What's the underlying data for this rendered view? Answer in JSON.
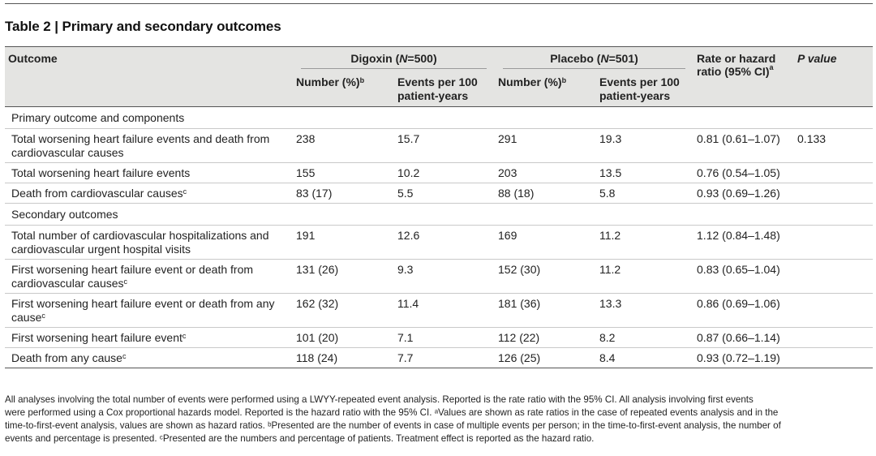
{
  "title": "Table 2 | Primary and secondary outcomes",
  "header": {
    "outcome": "Outcome",
    "digoxin": "Digoxin (N=500)",
    "placebo": "Placebo (N=501)",
    "ratio": "Rate or hazard ratio (95% CI)",
    "ratio_sup": "a",
    "pvalue": "P value",
    "number_pct": "Number (%)",
    "number_pct_sup": "b",
    "events_per_100": "Events per 100 patient-years"
  },
  "rows": [
    {
      "type": "section",
      "label": "Primary outcome and components"
    },
    {
      "type": "data",
      "label": "Total worsening heart failure events and death from cardiovascular causes",
      "sup": "",
      "d_num": "238",
      "d_evt": "15.7",
      "p_num": "291",
      "p_evt": "19.3",
      "ratio": "0.81 (0.61–1.07)",
      "pval": "0.133"
    },
    {
      "type": "data",
      "label": "Total worsening heart failure events",
      "sup": "",
      "d_num": "155",
      "d_evt": "10.2",
      "p_num": "203",
      "p_evt": "13.5",
      "ratio": "0.76 (0.54–1.05)",
      "pval": ""
    },
    {
      "type": "data",
      "label": "Death from cardiovascular causes",
      "sup": "c",
      "d_num": "83 (17)",
      "d_evt": "5.5",
      "p_num": "88 (18)",
      "p_evt": "5.8",
      "ratio": "0.93 (0.69–1.26)",
      "pval": ""
    },
    {
      "type": "section",
      "label": "Secondary outcomes"
    },
    {
      "type": "data",
      "label": "Total number of cardiovascular hospitalizations and cardiovascular urgent hospital visits",
      "sup": "",
      "d_num": "191",
      "d_evt": "12.6",
      "p_num": "169",
      "p_evt": "11.2",
      "ratio": "1.12 (0.84–1.48)",
      "pval": ""
    },
    {
      "type": "data",
      "label": "First worsening heart failure event or death from cardiovascular causes",
      "sup": "c",
      "d_num": "131 (26)",
      "d_evt": "9.3",
      "p_num": "152 (30)",
      "p_evt": "11.2",
      "ratio": "0.83 (0.65–1.04)",
      "pval": ""
    },
    {
      "type": "data",
      "label": "First worsening heart failure event or death from any cause",
      "sup": "c",
      "d_num": "162 (32)",
      "d_evt": "11.4",
      "p_num": "181 (36)",
      "p_evt": "13.3",
      "ratio": "0.86 (0.69–1.06)",
      "pval": ""
    },
    {
      "type": "data",
      "label": "First worsening heart failure event",
      "sup": "c",
      "d_num": "101 (20)",
      "d_evt": "7.1",
      "p_num": "112 (22)",
      "p_evt": "8.2",
      "ratio": "0.87 (0.66–1.14)",
      "pval": ""
    },
    {
      "type": "data",
      "label": "Death from any cause",
      "sup": "c",
      "d_num": "118 (24)",
      "d_evt": "7.7",
      "p_num": "126 (25)",
      "p_evt": "8.4",
      "ratio": "0.93 (0.72–1.19)",
      "pval": ""
    }
  ],
  "footnote_lines": [
    "All analyses involving the total number of events were performed using a LWYY-repeated event analysis. Reported is the rate ratio with the 95% CI. All analysis involving first events",
    "were performed using a Cox proportional hazards model. Reported is the hazard ratio with the 95% CI. ᵃValues are shown as rate ratios in the case of repeated events analysis and in the",
    "time-to-first-event analysis, values are shown as hazard ratios. ᵇPresented are the number of events in case of multiple events per person; in the time-to-first-event analysis, the number of",
    "events and percentage is presented. ᶜPresented are the numbers and percentage of patients. Treatment effect is reported as the hazard ratio."
  ]
}
